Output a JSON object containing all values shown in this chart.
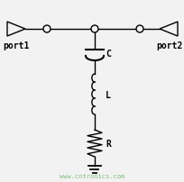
{
  "bg_color": "#f2f2f2",
  "line_color": "#000000",
  "watermark_color": "#80bb80",
  "watermark_text": "www.cntronics.com",
  "port1_label": "port1",
  "port2_label": "port2",
  "C_label": "C",
  "L_label": "L",
  "R_label": "R",
  "figsize": [
    2.05,
    2.03
  ],
  "dpi": 100
}
